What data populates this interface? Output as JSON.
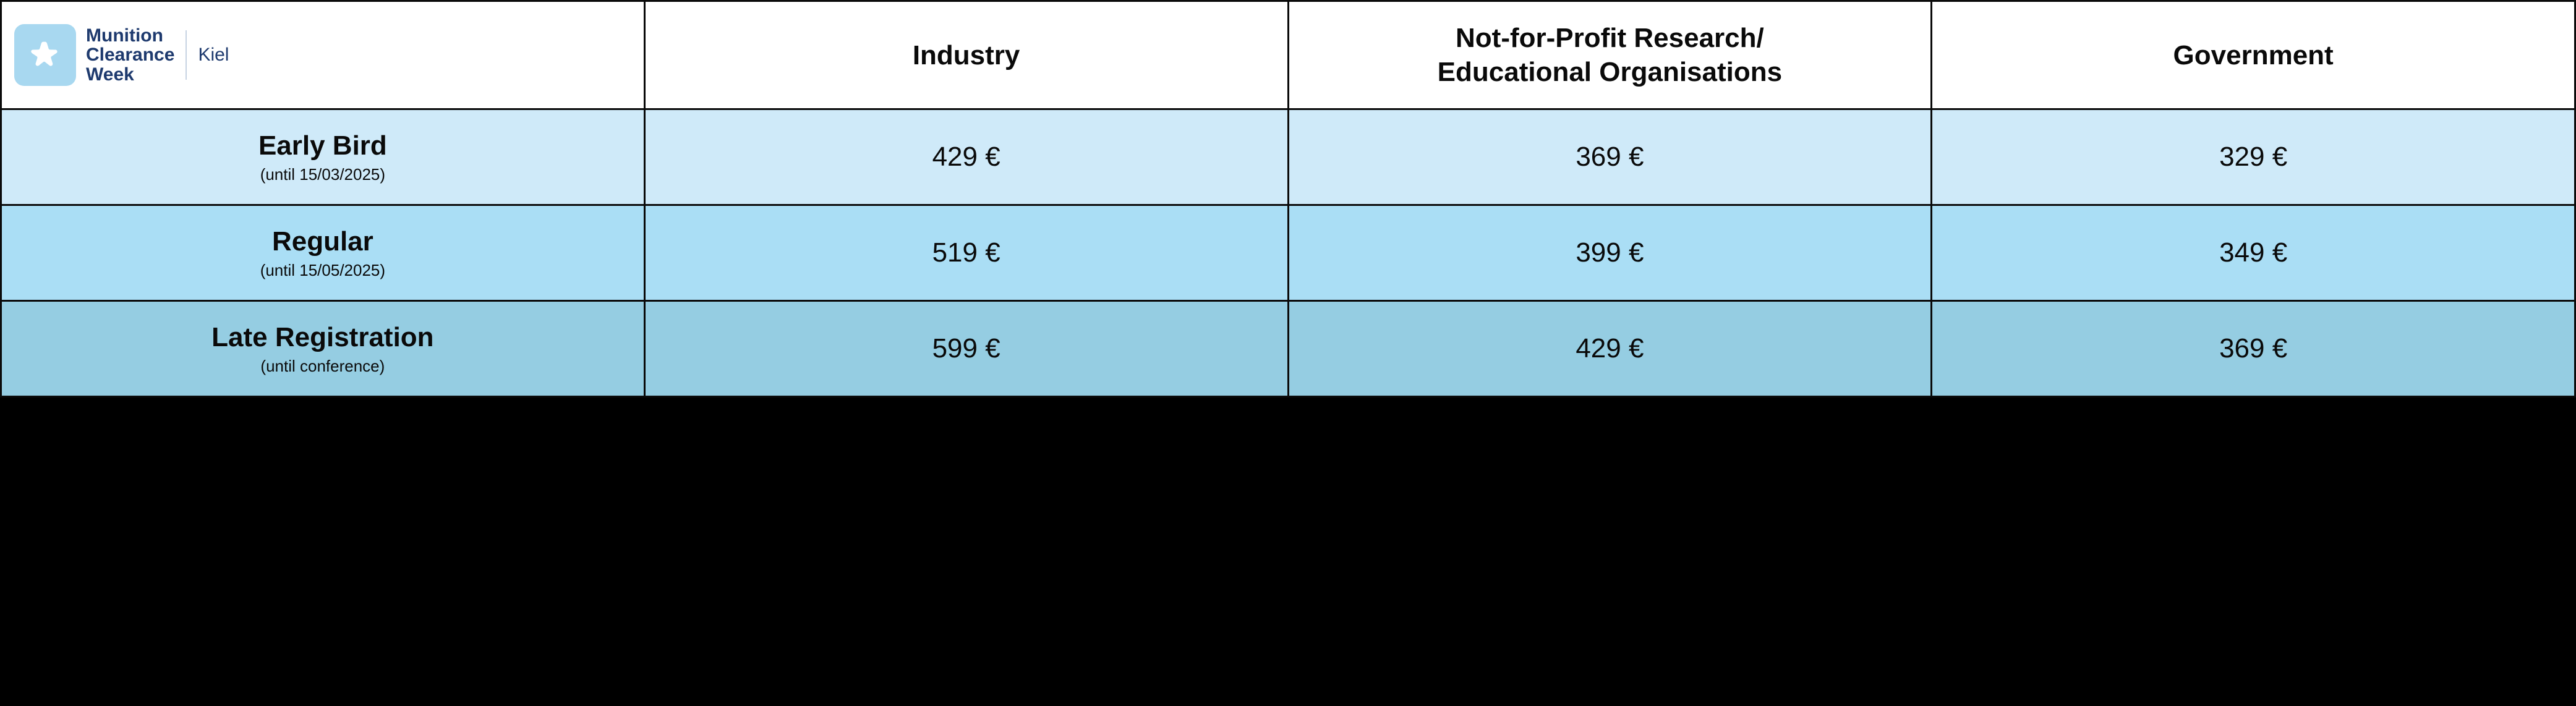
{
  "table": {
    "type": "table",
    "border_color": "#0a0a0a",
    "border_width": 3,
    "header_bg": "#ffffff",
    "text_color": "#0a0a0a",
    "header_fontsize": 44,
    "header_fontweight": 700,
    "price_fontsize": 44,
    "price_fontweight": 400,
    "tier_name_fontsize": 44,
    "tier_name_fontweight": 700,
    "tier_note_fontsize": 26,
    "column_widths_pct": [
      25,
      25,
      25,
      25
    ],
    "logo": {
      "badge_bg": "#a8d8f0",
      "badge_radius": 16,
      "star_fill": "#ffffff",
      "title_line1": "Munition",
      "title_line2": "Clearance",
      "title_line3": "Week",
      "subtitle": "Kiel",
      "title_color": "#1e3a6e",
      "divider_color": "#c7d3e3"
    },
    "columns": [
      "Industry",
      "Not-for-Profit Research/\nEducational Organisations",
      "Government"
    ],
    "rows": [
      {
        "tier": "Early Bird",
        "note": "(until 15/03/2025)",
        "bg": "#cfeaf9",
        "prices": [
          "429 €",
          "369 €",
          "329 €"
        ]
      },
      {
        "tier": "Regular",
        "note": "(until 15/05/2025)",
        "bg": "#aadef5",
        "prices": [
          "519 €",
          "399 €",
          "349 €"
        ]
      },
      {
        "tier": "Late Registration",
        "note": "(until conference)",
        "bg": "#95cde2",
        "prices": [
          "599 €",
          "429 €",
          "369 €"
        ]
      }
    ]
  },
  "page": {
    "background_below": "#000000"
  }
}
